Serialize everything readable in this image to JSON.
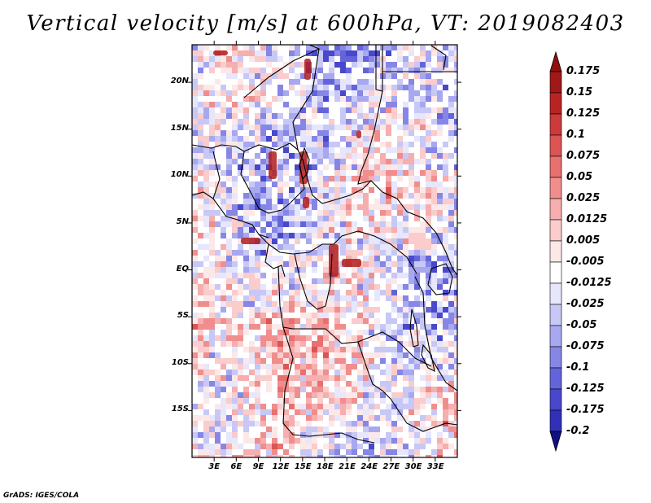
{
  "title": "Vertical velocity [m/s] at 600hPa, VT: 2019082403",
  "credit": "GrADS: IGES/COLA",
  "map": {
    "region": "Central Africa",
    "lon_range": [
      0,
      36
    ],
    "lat_range": [
      -20,
      24
    ],
    "lat_ticks": [
      {
        "label": "20N",
        "lat": 20
      },
      {
        "label": "15N",
        "lat": 15
      },
      {
        "label": "10N",
        "lat": 10
      },
      {
        "label": "5N",
        "lat": 5
      },
      {
        "label": "EQ",
        "lat": 0
      },
      {
        "label": "5S",
        "lat": -5
      },
      {
        "label": "10S",
        "lat": -10
      },
      {
        "label": "15S",
        "lat": -15
      }
    ],
    "lon_ticks": [
      {
        "label": "3E",
        "lon": 3
      },
      {
        "label": "6E",
        "lon": 6
      },
      {
        "label": "9E",
        "lon": 9
      },
      {
        "label": "12E",
        "lon": 12
      },
      {
        "label": "15E",
        "lon": 15
      },
      {
        "label": "18E",
        "lon": 18
      },
      {
        "label": "21E",
        "lon": 21
      },
      {
        "label": "24E",
        "lon": 24
      },
      {
        "label": "27E",
        "lon": 27
      },
      {
        "label": "30E",
        "lon": 30
      },
      {
        "label": "33E",
        "lon": 33
      }
    ]
  },
  "colorbar": {
    "levels": [
      {
        "label": "0.175",
        "color": "#a01818"
      },
      {
        "label": "0.15",
        "color": "#b82424"
      },
      {
        "label": "0.125",
        "color": "#cc3a3a"
      },
      {
        "label": "0.1",
        "color": "#dc5454"
      },
      {
        "label": "0.075",
        "color": "#e87070"
      },
      {
        "label": "0.05",
        "color": "#f08e8e"
      },
      {
        "label": "0.025",
        "color": "#f6aeae"
      },
      {
        "label": "0.0125",
        "color": "#facccc"
      },
      {
        "label": "0.005",
        "color": "#fde8e8"
      },
      {
        "label": "-0.005",
        "color": "#ffffff"
      },
      {
        "label": "-0.0125",
        "color": "#e6e6fc"
      },
      {
        "label": "-0.025",
        "color": "#c8c8f6"
      },
      {
        "label": "-0.05",
        "color": "#a8a8f0"
      },
      {
        "label": "-0.075",
        "color": "#8686e6"
      },
      {
        "label": "-0.1",
        "color": "#6464da"
      },
      {
        "label": "-0.125",
        "color": "#4848cc"
      },
      {
        "label": "-0.175",
        "color": "#3030b8"
      },
      {
        "label": "-0.2",
        "color": "#1e1ea0"
      }
    ],
    "top_color": "#901010",
    "bottom_color": "#101080"
  }
}
